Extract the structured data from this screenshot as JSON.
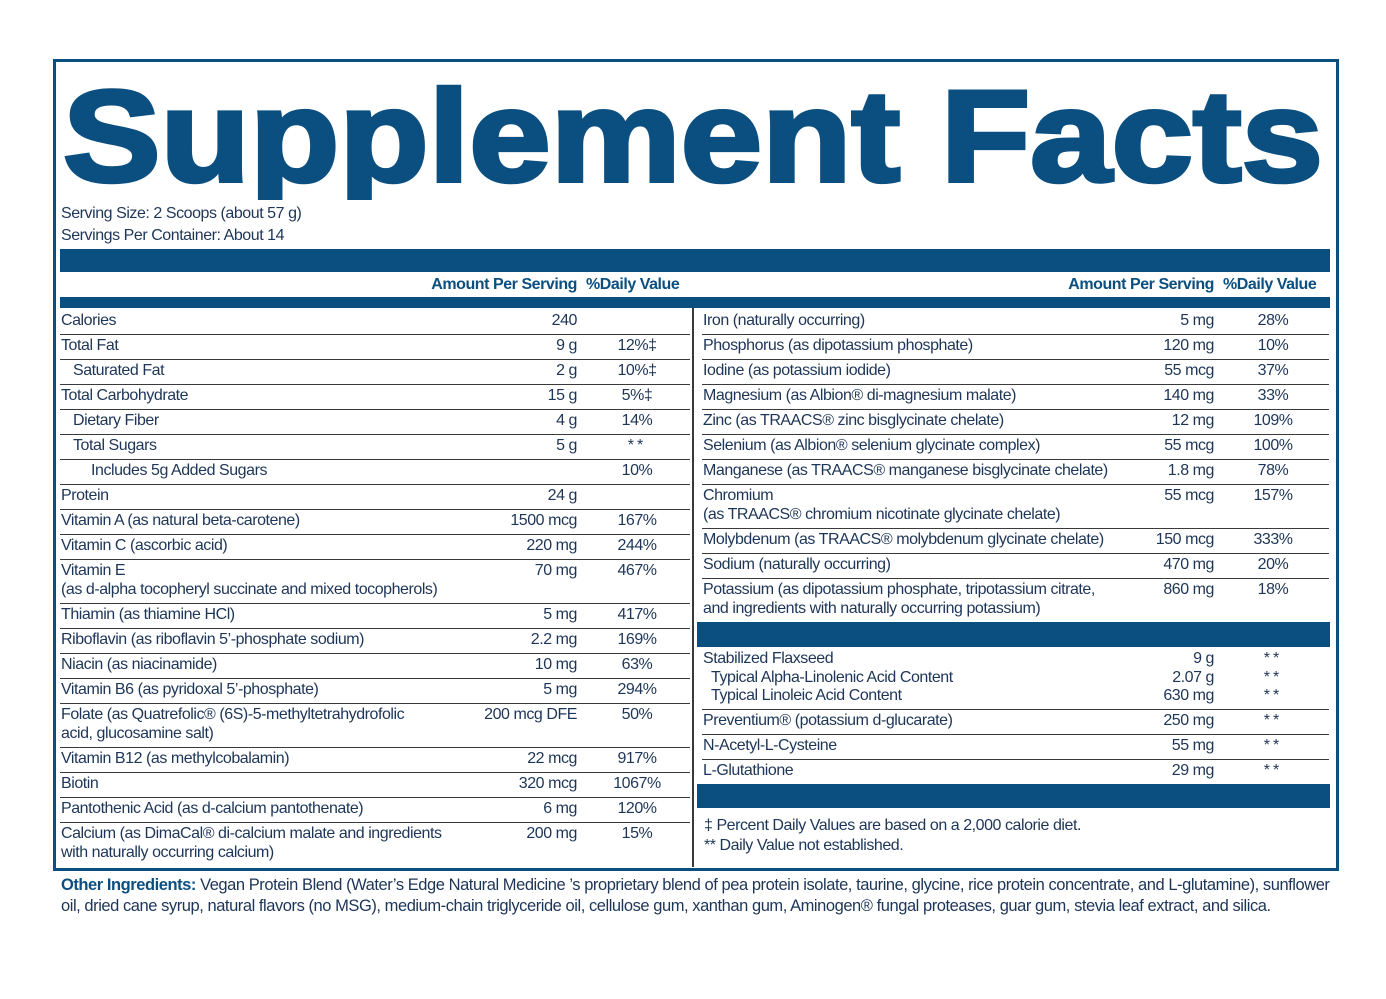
{
  "title": "Supplement Facts",
  "serving_size": "Serving Size: 2 Scoops (about 57 g)",
  "servings_per_container": "Servings Per Container: About 14",
  "left": {
    "header": {
      "amount": "Amount Per Serving",
      "dv": "%Daily Value"
    },
    "rows": [
      {
        "name": [
          "Calories"
        ],
        "amount": "240"
      },
      {
        "name": [
          "Total Fat"
        ],
        "amount": "9 g",
        "dv": "12%‡"
      },
      {
        "name": [
          "Saturated Fat"
        ],
        "amount": "2 g",
        "dv": "10%‡"
      },
      {
        "name": [
          "Total Carbohydrate"
        ],
        "amount": "15 g",
        "dv": "5%‡"
      },
      {
        "name": [
          "Dietary Fiber"
        ],
        "amount": "4 g",
        "dv": "14%"
      },
      {
        "name": [
          "Total Sugars"
        ],
        "amount": "5 g",
        "dv": "**"
      },
      {
        "name": [
          "Includes 5g Added Sugars"
        ],
        "dv": "10%"
      },
      {
        "name": [
          "Protein"
        ],
        "amount": "24 g"
      },
      {
        "name": [
          "Vitamin A (as natural beta-carotene)"
        ],
        "amount": "1500 mcg",
        "dv": "167%"
      },
      {
        "name": [
          "Vitamin C (ascorbic acid)"
        ],
        "amount": "220 mg",
        "dv": "244%"
      },
      {
        "name": [
          "Vitamin E",
          "(as d-alpha tocopheryl succinate and mixed tocopherols)"
        ],
        "amount": "70 mg",
        "dv": "467%"
      },
      {
        "name": [
          "Thiamin (as thiamine HCl)"
        ],
        "amount": "5 mg",
        "dv": "417%"
      },
      {
        "name": [
          "Riboflavin (as riboflavin 5’-phosphate sodium)"
        ],
        "amount": "2.2 mg",
        "dv": "169%"
      },
      {
        "name": [
          "Niacin (as niacinamide)"
        ],
        "amount": "10 mg",
        "dv": "63%"
      },
      {
        "name": [
          "Vitamin B6 (as pyridoxal 5’-phosphate)"
        ],
        "amount": "5 mg",
        "dv": "294%"
      },
      {
        "name": [
          "Folate (as Quatrefolic® (6S)-5-methyltetrahydrofolic",
          "acid, glucosamine salt)"
        ],
        "amount": "200 mcg DFE",
        "dv": "50%"
      },
      {
        "name": [
          "Vitamin B12 (as methylcobalamin)"
        ],
        "amount": "22 mcg",
        "dv": "917%"
      },
      {
        "name": [
          "Biotin"
        ],
        "amount": "320 mcg",
        "dv": "1067%"
      },
      {
        "name": [
          "Pantothenic Acid (as d-calcium pantothenate)"
        ],
        "amount": "6 mg",
        "dv": "120%"
      },
      {
        "name": [
          "Calcium (as DimaCal® di-calcium malate and ingredients",
          "with naturally occurring calcium)"
        ],
        "amount": "200 mg",
        "dv": "15%"
      }
    ]
  },
  "right": {
    "header": {
      "amount": "Amount Per Serving",
      "dv": "%Daily Value"
    },
    "rows": [
      {
        "name": [
          "Iron (naturally occurring)"
        ],
        "amount": "5 mg",
        "dv": "28%"
      },
      {
        "name": [
          "Phosphorus (as dipotassium phosphate)"
        ],
        "amount": "120 mg",
        "dv": "10%"
      },
      {
        "name": [
          "Iodine (as potassium iodide)"
        ],
        "amount": "55 mcg",
        "dv": "37%"
      },
      {
        "name": [
          "Magnesium (as Albion® di-magnesium malate)"
        ],
        "amount": "140 mg",
        "dv": "33%"
      },
      {
        "name": [
          "Zinc (as TRAACS® zinc bisglycinate chelate)"
        ],
        "amount": "12 mg",
        "dv": "109%"
      },
      {
        "name": [
          "Selenium (as Albion® selenium glycinate complex)"
        ],
        "amount": "55 mcg",
        "dv": "100%"
      },
      {
        "name": [
          "Manganese (as TRAACS® manganese bisglycinate chelate)"
        ],
        "amount": "1.8 mg",
        "dv": "78%"
      },
      {
        "name": [
          "Chromium",
          "(as TRAACS® chromium nicotinate glycinate chelate)"
        ],
        "amount": "55 mcg",
        "dv": "157%"
      },
      {
        "name": [
          "Molybdenum (as TRAACS® molybdenum glycinate chelate)"
        ],
        "amount": "150 mcg",
        "dv": "333%"
      },
      {
        "name": [
          "Sodium (naturally occurring)"
        ],
        "amount": "470 mg",
        "dv": "20%"
      },
      {
        "name": [
          "Potassium (as dipotassium phosphate, tripotassium citrate,",
          "and ingredients with naturally occurring potassium)"
        ],
        "amount": "860 mg",
        "dv": "18%"
      }
    ],
    "other_rows": [
      {
        "items": [
          {
            "name": "Stabilized Flaxseed",
            "amount": "9 g",
            "dv": "**"
          },
          {
            "name": "Typical Alpha-Linolenic Acid Content",
            "amount": "2.07 g",
            "dv": "**"
          },
          {
            "name": "Typical Linoleic Acid Content",
            "amount": "630 mg",
            "dv": "**"
          }
        ]
      },
      {
        "name": [
          "Preventium® (potassium d-glucarate)"
        ],
        "amount": "250 mg",
        "dv": "**"
      },
      {
        "name": [
          "N-Acetyl-L-Cysteine"
        ],
        "amount": "55 mg",
        "dv": "**"
      },
      {
        "name": [
          "L-Glutathione"
        ],
        "amount": "29 mg",
        "dv": "**"
      }
    ]
  },
  "footnotes": [
    "‡ Percent Daily Values are based on a 2,000 calorie diet.",
    "** Daily Value not established."
  ],
  "other_ingredients": {
    "label": "Other Ingredients:",
    "text": "Vegan Protein Blend (Water’s Edge Natural Medicine ’s proprietary blend of pea protein isolate, taurine, glycine, rice protein concentrate, and L-glutamine), sunflower oil, dried cane syrup, natural flavors (no MSG), medium-chain triglyceride oil, cellulose gum, xanthan gum, Aminogen® fungal proteases, guar gum, stevia leaf extract, and silica."
  }
}
